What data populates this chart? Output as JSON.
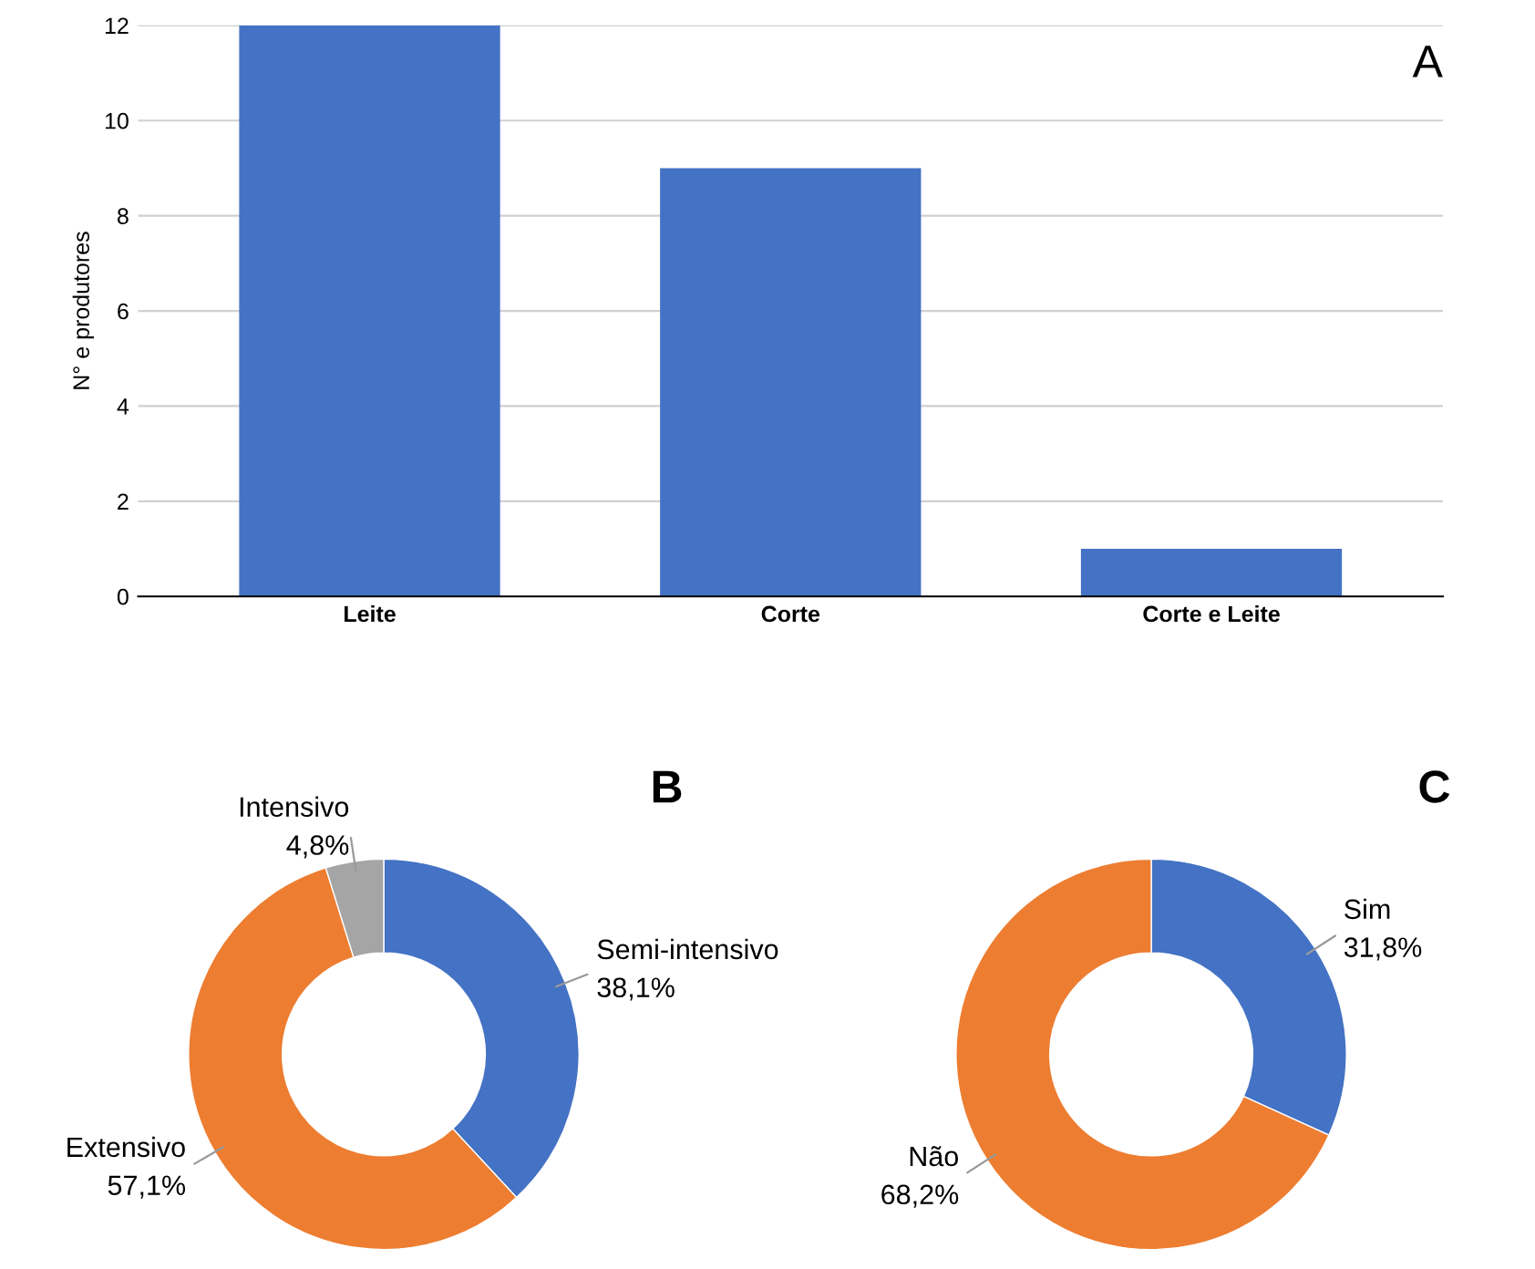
{
  "chart_data": [
    {
      "type": "bar",
      "title": "A",
      "ylabel": "N° e produtores",
      "categories": [
        "Leite",
        "Corte",
        "Corte e Leite"
      ],
      "values": [
        12,
        9,
        1
      ],
      "color": "#4472c4",
      "ylim": [
        0,
        12
      ],
      "yticks": [
        0,
        2,
        4,
        6,
        8,
        10,
        12
      ],
      "grid": "y"
    },
    {
      "type": "donut",
      "title": "B",
      "categories": [
        "Semi-intensivo",
        "Extensivo",
        "Intensivo"
      ],
      "values": [
        38.1,
        57.1,
        4.8
      ],
      "value_labels": [
        "38,1%",
        "57,1%",
        "4,8%"
      ],
      "colors": [
        "#4472c4",
        "#ed7d31",
        "#a5a5a5"
      ]
    },
    {
      "type": "donut",
      "title": "C",
      "categories": [
        "Sim",
        "Não"
      ],
      "values": [
        31.8,
        68.2
      ],
      "value_labels": [
        "31,8%",
        "68,2%"
      ],
      "colors": [
        "#4472c4",
        "#ed7d31"
      ]
    }
  ]
}
